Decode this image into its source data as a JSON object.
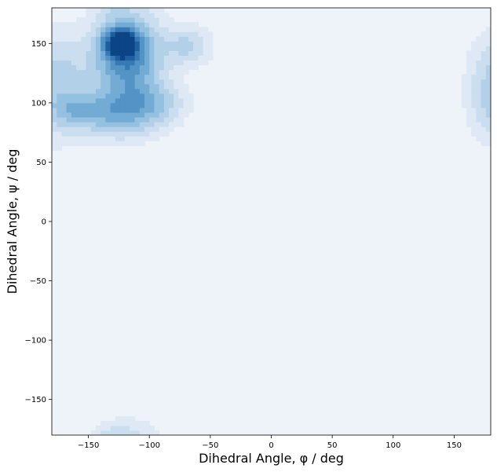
{
  "chart_data": {
    "type": "heatmap",
    "subtype": "kde-density-contour",
    "xlabel": "Dihedral Angle, φ / deg",
    "ylabel": "Dihedral Angle, ψ / deg",
    "xlim": [
      -180,
      180
    ],
    "ylim": [
      -180,
      180
    ],
    "xticks": [
      -150,
      -100,
      -50,
      0,
      50,
      100,
      150
    ],
    "yticks": [
      -150,
      -100,
      -50,
      0,
      50,
      100,
      150
    ],
    "xtick_labels": [
      "−150",
      "−100",
      "−50",
      "0",
      "50",
      "100",
      "150"
    ],
    "ytick_labels": [
      "−150",
      "−100",
      "−50",
      "0",
      "50",
      "100",
      "150"
    ],
    "grid": false,
    "colormap": "Blues",
    "background_color": "#eef3fa",
    "density_peaks": [
      {
        "phi": -123,
        "psi": 150,
        "sphi": 9,
        "spsi": 8,
        "weight": 1.0
      },
      {
        "phi": -118,
        "psi": 138,
        "sphi": 16,
        "spsi": 22,
        "weight": 0.55
      },
      {
        "phi": -125,
        "psi": 93,
        "sphi": 22,
        "spsi": 12,
        "weight": 0.35
      },
      {
        "phi": -160,
        "psi": 94,
        "sphi": 12,
        "spsi": 8,
        "weight": 0.18
      },
      {
        "phi": -100,
        "psi": 103,
        "sphi": 16,
        "spsi": 10,
        "weight": 0.16
      },
      {
        "phi": -70,
        "psi": 148,
        "sphi": 12,
        "spsi": 10,
        "weight": 0.14
      },
      {
        "phi": -165,
        "psi": 120,
        "sphi": 15,
        "spsi": 25,
        "weight": 0.1
      },
      {
        "phi": 180,
        "psi": 110,
        "sphi": 12,
        "spsi": 25,
        "weight": 0.1
      },
      {
        "phi": -130,
        "psi": -180,
        "sphi": 8,
        "spsi": 6,
        "weight": 0.05
      }
    ]
  }
}
